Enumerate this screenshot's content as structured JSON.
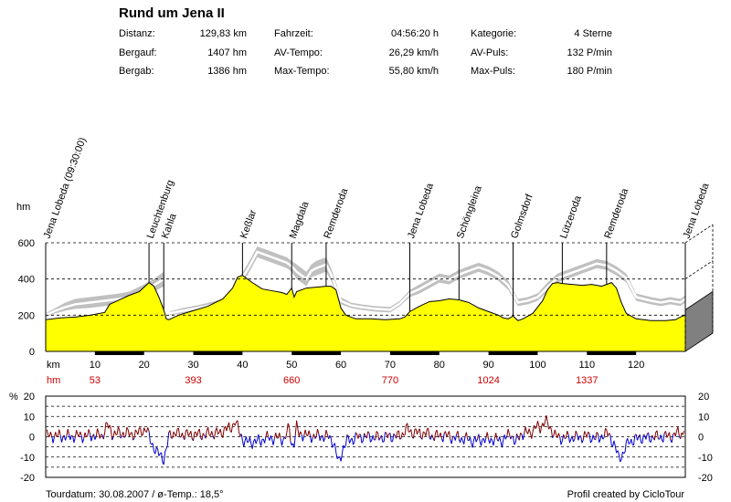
{
  "title": "Rund um Jena II",
  "stats": {
    "col1": [
      {
        "label": "Distanz:",
        "value": "129,83 km"
      },
      {
        "label": "Bergauf:",
        "value": "1407 hm"
      },
      {
        "label": "Bergab:",
        "value": "1386 hm"
      }
    ],
    "col2": [
      {
        "label": "Fahrzeit:",
        "value": "04:56:20 h"
      },
      {
        "label": "AV-Tempo:",
        "value": "26,29 km/h"
      },
      {
        "label": "Max-Tempo:",
        "value": "55,80 km/h"
      }
    ],
    "col3": [
      {
        "label": "Kategorie:",
        "value": "4 Sterne"
      },
      {
        "label": "AV-Puls:",
        "value": "132 P/min"
      },
      {
        "label": "Max-Puls:",
        "value": "180 P/min"
      }
    ]
  },
  "footer": {
    "left": "Tourdatum: 30.08.2007  /  ø-Temp.: 18,5°",
    "right": "Profil created by CicloTour"
  },
  "colors": {
    "profile_fill": "#ffff00",
    "speed_band": "#c0c0c0",
    "speed_line": "#ffffff",
    "gradient_up": "#800000",
    "gradient_down": "#0000cc",
    "hm_labels": "#cc0000",
    "side_wall": "#808080"
  },
  "chart_data": [
    {
      "type": "area",
      "yunit": "hm",
      "xunit": "km",
      "hm_row_label": "hm",
      "xlim": [
        0,
        130
      ],
      "ylim": [
        0,
        600
      ],
      "yticks": [
        0,
        200,
        400,
        600
      ],
      "xticks": [
        10,
        20,
        30,
        40,
        50,
        60,
        70,
        80,
        90,
        100,
        110,
        120
      ],
      "grid": true,
      "waypoints": [
        {
          "name": "Jena Lobeda (09:30:00)",
          "km": 0
        },
        {
          "name": "Leuchtenburg",
          "km": 21
        },
        {
          "name": "Kahla",
          "km": 24
        },
        {
          "name": "Keßlar",
          "km": 40
        },
        {
          "name": "Magdala",
          "km": 50
        },
        {
          "name": "Remderoda",
          "km": 57
        },
        {
          "name": "Jena Lobeda",
          "km": 74
        },
        {
          "name": "Schöngleina",
          "km": 84
        },
        {
          "name": "Golmsdorf",
          "km": 95
        },
        {
          "name": "Lützeroda",
          "km": 105
        },
        {
          "name": "Remderoda",
          "km": 114
        },
        {
          "name": "Jena Lobeda",
          "km": 130
        }
      ],
      "hm_markers": [
        {
          "km": 10,
          "value": "53"
        },
        {
          "km": 30,
          "value": "393"
        },
        {
          "km": 50,
          "value": "660"
        },
        {
          "km": 70,
          "value": "770"
        },
        {
          "km": 90,
          "value": "1024"
        },
        {
          "km": 110,
          "value": "1337"
        }
      ],
      "elevation_profile": {
        "km": [
          0,
          3,
          6,
          9,
          12,
          13,
          15,
          17,
          19,
          20,
          21,
          22,
          23,
          24,
          24.5,
          25,
          27,
          30,
          33,
          36,
          38,
          39,
          40,
          41,
          42,
          44,
          46,
          48,
          49,
          50,
          50.5,
          51,
          53,
          55,
          57,
          58,
          59,
          60,
          61,
          63,
          66,
          69,
          72,
          73,
          74,
          76,
          78,
          80,
          82,
          84,
          86,
          88,
          90,
          92,
          93,
          94,
          95,
          96,
          97,
          99,
          101,
          102,
          103,
          104,
          105,
          107,
          109,
          111,
          113,
          114,
          115,
          116,
          117,
          118,
          120,
          123,
          126,
          128,
          129,
          130
        ],
        "hm": [
          175,
          185,
          190,
          200,
          215,
          260,
          285,
          310,
          330,
          355,
          380,
          360,
          300,
          230,
          180,
          175,
          200,
          225,
          250,
          290,
          350,
          410,
          420,
          400,
          380,
          345,
          335,
          325,
          315,
          350,
          300,
          330,
          350,
          355,
          360,
          360,
          340,
          240,
          200,
          180,
          180,
          175,
          180,
          190,
          220,
          250,
          275,
          280,
          290,
          285,
          270,
          240,
          220,
          200,
          185,
          180,
          195,
          170,
          180,
          210,
          280,
          340,
          375,
          380,
          375,
          370,
          365,
          370,
          360,
          370,
          380,
          350,
          270,
          210,
          180,
          170,
          170,
          175,
          190,
          200,
          230
        ]
      },
      "speed_band": {
        "km": [
          0,
          2,
          4,
          6,
          9,
          12,
          15,
          17,
          20,
          22,
          24,
          25,
          28,
          31,
          34,
          37,
          39,
          41,
          43,
          45,
          47,
          49,
          50,
          51,
          52,
          53,
          54,
          55,
          56,
          57,
          58,
          60,
          62,
          64,
          67,
          70,
          72,
          74,
          76,
          78,
          80,
          82,
          84,
          86,
          88,
          90,
          92,
          94,
          96,
          98,
          100,
          102,
          104,
          106,
          108,
          110,
          112,
          114,
          116,
          118,
          120,
          123,
          125,
          127,
          129,
          130
        ],
        "low": [
          190,
          210,
          225,
          235,
          240,
          250,
          255,
          270,
          300,
          330,
          360,
          200,
          210,
          225,
          240,
          255,
          350,
          420,
          520,
          500,
          480,
          460,
          440,
          400,
          380,
          360,
          410,
          420,
          430,
          440,
          390,
          260,
          240,
          230,
          220,
          215,
          250,
          300,
          320,
          350,
          380,
          370,
          400,
          420,
          440,
          420,
          390,
          340,
          250,
          260,
          280,
          330,
          380,
          400,
          420,
          440,
          460,
          450,
          420,
          380,
          280,
          260,
          250,
          260,
          250,
          270
        ],
        "high": [
          210,
          240,
          270,
          290,
          300,
          310,
          320,
          330,
          370,
          400,
          440,
          220,
          240,
          255,
          275,
          300,
          390,
          480,
          580,
          560,
          540,
          520,
          500,
          480,
          460,
          440,
          480,
          500,
          510,
          520,
          460,
          300,
          270,
          260,
          250,
          245,
          280,
          340,
          370,
          400,
          430,
          420,
          450,
          470,
          490,
          470,
          440,
          390,
          290,
          300,
          320,
          380,
          430,
          450,
          470,
          490,
          510,
          500,
          470,
          430,
          320,
          300,
          290,
          300,
          290,
          310
        ],
        "line": [
          200,
          225,
          245,
          260,
          270,
          280,
          290,
          300,
          335,
          365,
          400,
          210,
          225,
          240,
          258,
          280,
          370,
          450,
          550,
          530,
          510,
          490,
          470,
          440,
          420,
          400,
          445,
          460,
          470,
          480,
          425,
          280,
          255,
          245,
          235,
          230,
          265,
          320,
          345,
          375,
          405,
          395,
          425,
          445,
          465,
          445,
          415,
          365,
          270,
          280,
          300,
          355,
          405,
          425,
          445,
          465,
          485,
          475,
          445,
          405,
          300,
          280,
          270,
          280,
          270,
          290
        ]
      }
    },
    {
      "type": "line",
      "yunit": "%",
      "ylim": [
        -20,
        20
      ],
      "yticks": [
        -20,
        -10,
        0,
        10,
        20
      ],
      "xlim": [
        0,
        130
      ],
      "grid": true
    }
  ]
}
